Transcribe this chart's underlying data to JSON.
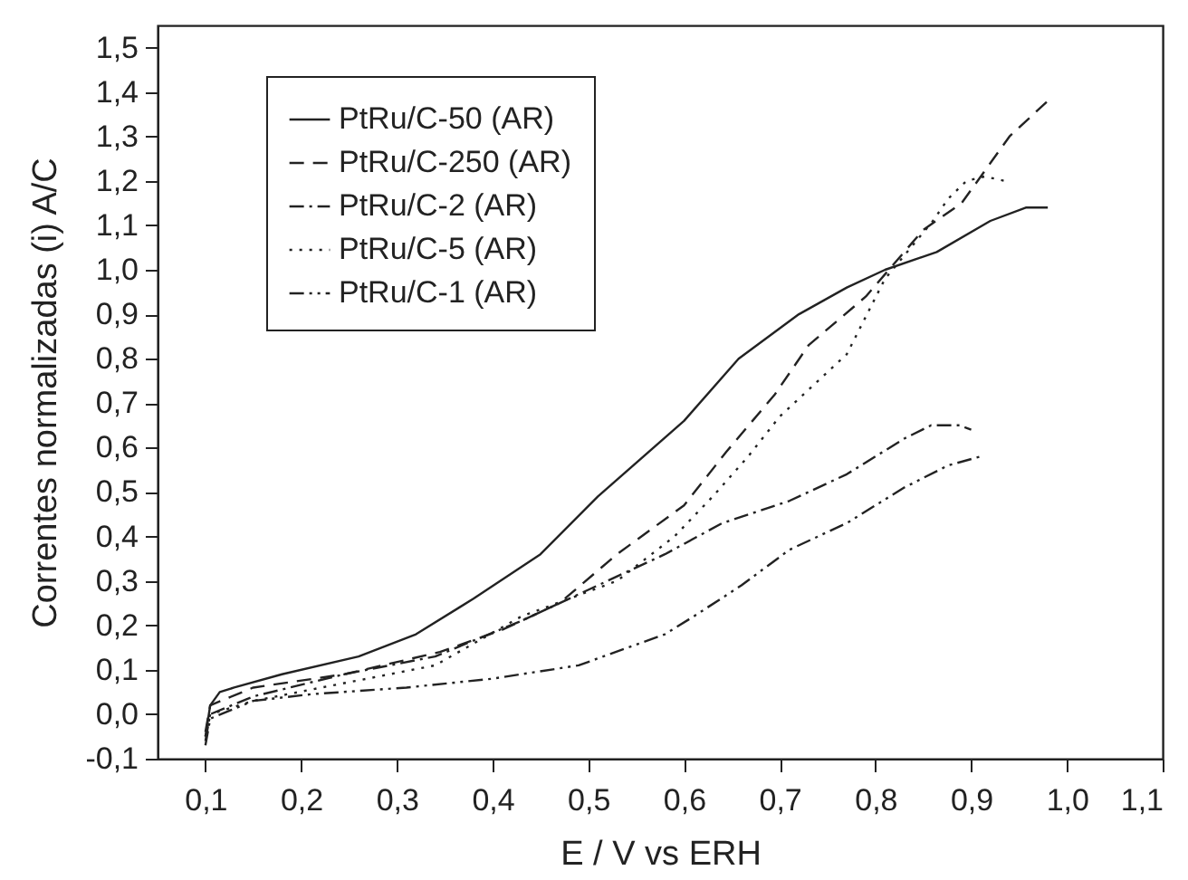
{
  "chart_data": {
    "type": "line",
    "xlabel": "E / V  vs  ERH",
    "ylabel": "Correntes normalizadas (i) A/C",
    "xlim": [
      0.05,
      1.1
    ],
    "ylim": [
      -0.1,
      1.55
    ],
    "xticks": [
      {
        "value": 0.1,
        "label": "0,1"
      },
      {
        "value": 0.2,
        "label": "0,2"
      },
      {
        "value": 0.3,
        "label": "0,3"
      },
      {
        "value": 0.4,
        "label": "0,4"
      },
      {
        "value": 0.5,
        "label": "0,5"
      },
      {
        "value": 0.6,
        "label": "0,6"
      },
      {
        "value": 0.7,
        "label": "0,7"
      },
      {
        "value": 0.8,
        "label": "0,8"
      },
      {
        "value": 0.9,
        "label": "0,9"
      },
      {
        "value": 1.0,
        "label": "1,0"
      },
      {
        "value": 1.1,
        "label": "1,1"
      }
    ],
    "yticks": [
      {
        "value": -0.1,
        "label": "-0,1"
      },
      {
        "value": 0.0,
        "label": "0,0"
      },
      {
        "value": 0.1,
        "label": "0,1"
      },
      {
        "value": 0.2,
        "label": "0,2"
      },
      {
        "value": 0.3,
        "label": "0,3"
      },
      {
        "value": 0.4,
        "label": "0,4"
      },
      {
        "value": 0.5,
        "label": "0,5"
      },
      {
        "value": 0.6,
        "label": "0,6"
      },
      {
        "value": 0.7,
        "label": "0,7"
      },
      {
        "value": 0.8,
        "label": "0,8"
      },
      {
        "value": 0.9,
        "label": "0,9"
      },
      {
        "value": 1.0,
        "label": "1,0"
      },
      {
        "value": 1.1,
        "label": "1,1"
      },
      {
        "value": 1.2,
        "label": "1,2"
      },
      {
        "value": 1.3,
        "label": "1,3"
      },
      {
        "value": 1.4,
        "label": "1,4"
      },
      {
        "value": 1.5,
        "label": "1,5"
      }
    ],
    "legend": "top left",
    "grid": false,
    "series": [
      {
        "name": "PtRu/C-50 (AR)",
        "color": "#222222",
        "line_style": "solid",
        "x": [
          0.1,
          0.105,
          0.115,
          0.13,
          0.18,
          0.26,
          0.32,
          0.38,
          0.45,
          0.51,
          0.6,
          0.657,
          0.72,
          0.77,
          0.81,
          0.864,
          0.92,
          0.957,
          0.98
        ],
        "values": [
          -0.05,
          0.02,
          0.05,
          0.06,
          0.09,
          0.13,
          0.18,
          0.26,
          0.36,
          0.49,
          0.66,
          0.8,
          0.9,
          0.96,
          1.0,
          1.04,
          1.11,
          1.14,
          1.14
        ]
      },
      {
        "name": "PtRu/C-250 (AR)",
        "color": "#222222",
        "line_style": "dashed",
        "x": [
          0.1,
          0.105,
          0.15,
          0.245,
          0.345,
          0.41,
          0.47,
          0.53,
          0.6,
          0.644,
          0.695,
          0.73,
          0.79,
          0.85,
          0.89,
          0.94,
          0.98
        ],
        "values": [
          -0.04,
          0.02,
          0.06,
          0.09,
          0.14,
          0.19,
          0.25,
          0.36,
          0.47,
          0.59,
          0.72,
          0.83,
          0.94,
          1.09,
          1.15,
          1.3,
          1.38
        ]
      },
      {
        "name": "PtRu/C-2 (AR)",
        "color": "#222222",
        "line_style": "dashdot",
        "x": [
          0.1,
          0.105,
          0.15,
          0.245,
          0.34,
          0.43,
          0.49,
          0.58,
          0.64,
          0.71,
          0.77,
          0.83,
          0.858,
          0.888,
          0.9
        ],
        "values": [
          -0.06,
          0.0,
          0.04,
          0.09,
          0.13,
          0.21,
          0.27,
          0.36,
          0.43,
          0.48,
          0.54,
          0.62,
          0.65,
          0.65,
          0.64
        ]
      },
      {
        "name": "PtRu/C-5 (AR)",
        "color": "#222222",
        "line_style": "dotted",
        "x": [
          0.1,
          0.105,
          0.15,
          0.245,
          0.34,
          0.43,
          0.53,
          0.59,
          0.63,
          0.667,
          0.7,
          0.72,
          0.77,
          0.81,
          0.86,
          0.876,
          0.895,
          0.914,
          0.935
        ],
        "values": [
          -0.05,
          0.0,
          0.03,
          0.07,
          0.11,
          0.22,
          0.3,
          0.4,
          0.49,
          0.58,
          0.67,
          0.71,
          0.81,
          0.98,
          1.11,
          1.16,
          1.2,
          1.21,
          1.2
        ]
      },
      {
        "name": "PtRu/C-1 (AR)",
        "color": "#222222",
        "line_style": "dashdotdot",
        "x": [
          0.1,
          0.105,
          0.15,
          0.21,
          0.31,
          0.4,
          0.49,
          0.58,
          0.61,
          0.66,
          0.71,
          0.77,
          0.83,
          0.876,
          0.91
        ],
        "values": [
          -0.07,
          -0.01,
          0.03,
          0.045,
          0.06,
          0.08,
          0.11,
          0.18,
          0.22,
          0.29,
          0.37,
          0.43,
          0.51,
          0.56,
          0.58
        ]
      }
    ]
  }
}
